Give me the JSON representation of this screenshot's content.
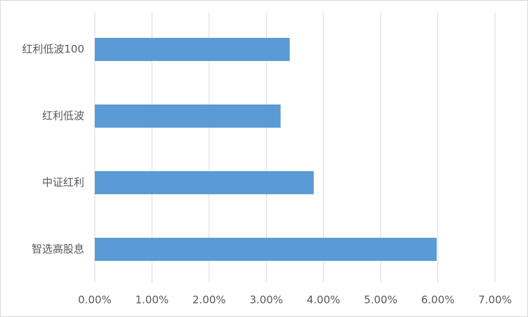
{
  "chart_data": {
    "type": "bar",
    "orientation": "horizontal",
    "categories": [
      "红利低波100",
      "红利低波",
      "中证红利",
      "智选高股息"
    ],
    "values": [
      3.41,
      3.25,
      3.83,
      5.98
    ],
    "color": "#5b9bd5",
    "xlim": [
      0,
      7
    ],
    "xticks": [
      {
        "value": 0,
        "label": "0.00%"
      },
      {
        "value": 1,
        "label": "1.00%"
      },
      {
        "value": 2,
        "label": "2.00%"
      },
      {
        "value": 3,
        "label": "3.00%"
      },
      {
        "value": 4,
        "label": "4.00%"
      },
      {
        "value": 5,
        "label": "5.00%"
      },
      {
        "value": 6,
        "label": "6.00%"
      },
      {
        "value": 7,
        "label": "7.00%"
      }
    ],
    "grid": true
  }
}
